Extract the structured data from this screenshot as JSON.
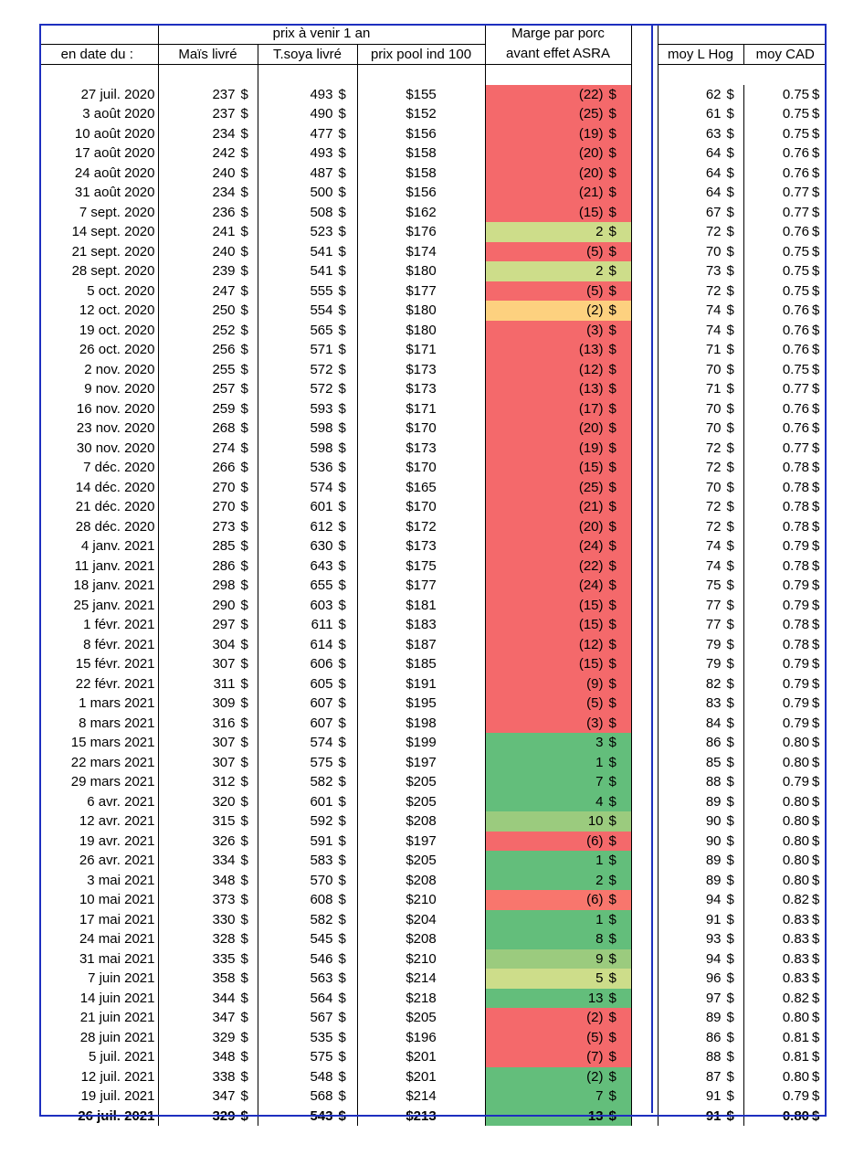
{
  "headers": {
    "date": "en date du :",
    "group_future": "prix à venir 1 an",
    "corn": "Maïs livré",
    "soy": "T.soya livré",
    "pool": "prix pool ind 100",
    "margin_line1": "Marge par porc",
    "margin_line2": "avant effet ASRA",
    "hog": "moy L Hog",
    "cad": "moy CAD"
  },
  "colors": {
    "red": "#f4696b",
    "green": "#63be7b",
    "lightgreen": "#cddd8a",
    "midgreen": "#9bcb7e",
    "yellow": "#fdd17f",
    "salmon": "#f8766d",
    "border_blue": "#1d2fbf"
  },
  "rows": [
    {
      "date": "27 juil. 2020",
      "corn": "237",
      "soy": "493",
      "pool": "$155",
      "margin": "(22)",
      "hog": "62",
      "cad": "0.75",
      "color": "red"
    },
    {
      "date": "3 août 2020",
      "corn": "237",
      "soy": "490",
      "pool": "$152",
      "margin": "(25)",
      "hog": "61",
      "cad": "0.75",
      "color": "red"
    },
    {
      "date": "10 août 2020",
      "corn": "234",
      "soy": "477",
      "pool": "$156",
      "margin": "(19)",
      "hog": "63",
      "cad": "0.75",
      "color": "red"
    },
    {
      "date": "17 août 2020",
      "corn": "242",
      "soy": "493",
      "pool": "$158",
      "margin": "(20)",
      "hog": "64",
      "cad": "0.76",
      "color": "red"
    },
    {
      "date": "24 août 2020",
      "corn": "240",
      "soy": "487",
      "pool": "$158",
      "margin": "(20)",
      "hog": "64",
      "cad": "0.76",
      "color": "red"
    },
    {
      "date": "31 août 2020",
      "corn": "234",
      "soy": "500",
      "pool": "$156",
      "margin": "(21)",
      "hog": "64",
      "cad": "0.77",
      "color": "red"
    },
    {
      "date": "7 sept. 2020",
      "corn": "236",
      "soy": "508",
      "pool": "$162",
      "margin": "(15)",
      "hog": "67",
      "cad": "0.77",
      "color": "red"
    },
    {
      "date": "14 sept. 2020",
      "corn": "241",
      "soy": "523",
      "pool": "$176",
      "margin": "2",
      "hog": "72",
      "cad": "0.76",
      "color": "lightgreen"
    },
    {
      "date": "21 sept. 2020",
      "corn": "240",
      "soy": "541",
      "pool": "$174",
      "margin": "(5)",
      "hog": "70",
      "cad": "0.75",
      "color": "red"
    },
    {
      "date": "28 sept. 2020",
      "corn": "239",
      "soy": "541",
      "pool": "$180",
      "margin": "2",
      "hog": "73",
      "cad": "0.75",
      "color": "lightgreen"
    },
    {
      "date": "5 oct. 2020",
      "corn": "247",
      "soy": "555",
      "pool": "$177",
      "margin": "(5)",
      "hog": "72",
      "cad": "0.75",
      "color": "red"
    },
    {
      "date": "12 oct. 2020",
      "corn": "250",
      "soy": "554",
      "pool": "$180",
      "margin": "(2)",
      "hog": "74",
      "cad": "0.76",
      "color": "yellow"
    },
    {
      "date": "19 oct. 2020",
      "corn": "252",
      "soy": "565",
      "pool": "$180",
      "margin": "(3)",
      "hog": "74",
      "cad": "0.76",
      "color": "red"
    },
    {
      "date": "26 oct. 2020",
      "corn": "256",
      "soy": "571",
      "pool": "$171",
      "margin": "(13)",
      "hog": "71",
      "cad": "0.76",
      "color": "red"
    },
    {
      "date": "2 nov. 2020",
      "corn": "255",
      "soy": "572",
      "pool": "$173",
      "margin": "(12)",
      "hog": "70",
      "cad": "0.75",
      "color": "red"
    },
    {
      "date": "9 nov. 2020",
      "corn": "257",
      "soy": "572",
      "pool": "$173",
      "margin": "(13)",
      "hog": "71",
      "cad": "0.77",
      "color": "red"
    },
    {
      "date": "16 nov. 2020",
      "corn": "259",
      "soy": "593",
      "pool": "$171",
      "margin": "(17)",
      "hog": "70",
      "cad": "0.76",
      "color": "red"
    },
    {
      "date": "23 nov. 2020",
      "corn": "268",
      "soy": "598",
      "pool": "$170",
      "margin": "(20)",
      "hog": "70",
      "cad": "0.76",
      "color": "red"
    },
    {
      "date": "30 nov. 2020",
      "corn": "274",
      "soy": "598",
      "pool": "$173",
      "margin": "(19)",
      "hog": "72",
      "cad": "0.77",
      "color": "red"
    },
    {
      "date": "7 déc. 2020",
      "corn": "266",
      "soy": "536",
      "pool": "$170",
      "margin": "(15)",
      "hog": "72",
      "cad": "0.78",
      "color": "red"
    },
    {
      "date": "14 déc. 2020",
      "corn": "270",
      "soy": "574",
      "pool": "$165",
      "margin": "(25)",
      "hog": "70",
      "cad": "0.78",
      "color": "red"
    },
    {
      "date": "21 déc. 2020",
      "corn": "270",
      "soy": "601",
      "pool": "$170",
      "margin": "(21)",
      "hog": "72",
      "cad": "0.78",
      "color": "red"
    },
    {
      "date": "28 déc. 2020",
      "corn": "273",
      "soy": "612",
      "pool": "$172",
      "margin": "(20)",
      "hog": "72",
      "cad": "0.78",
      "color": "red"
    },
    {
      "date": "4 janv. 2021",
      "corn": "285",
      "soy": "630",
      "pool": "$173",
      "margin": "(24)",
      "hog": "74",
      "cad": "0.79",
      "color": "red"
    },
    {
      "date": "11 janv. 2021",
      "corn": "286",
      "soy": "643",
      "pool": "$175",
      "margin": "(22)",
      "hog": "74",
      "cad": "0.78",
      "color": "red"
    },
    {
      "date": "18 janv. 2021",
      "corn": "298",
      "soy": "655",
      "pool": "$177",
      "margin": "(24)",
      "hog": "75",
      "cad": "0.79",
      "color": "red"
    },
    {
      "date": "25 janv. 2021",
      "corn": "290",
      "soy": "603",
      "pool": "$181",
      "margin": "(15)",
      "hog": "77",
      "cad": "0.79",
      "color": "red"
    },
    {
      "date": "1 févr. 2021",
      "corn": "297",
      "soy": "611",
      "pool": "$183",
      "margin": "(15)",
      "hog": "77",
      "cad": "0.78",
      "color": "red"
    },
    {
      "date": "8 févr. 2021",
      "corn": "304",
      "soy": "614",
      "pool": "$187",
      "margin": "(12)",
      "hog": "79",
      "cad": "0.78",
      "color": "red"
    },
    {
      "date": "15 févr. 2021",
      "corn": "307",
      "soy": "606",
      "pool": "$185",
      "margin": "(15)",
      "hog": "79",
      "cad": "0.79",
      "color": "red"
    },
    {
      "date": "22 févr. 2021",
      "corn": "311",
      "soy": "605",
      "pool": "$191",
      "margin": "(9)",
      "hog": "82",
      "cad": "0.79",
      "color": "red"
    },
    {
      "date": "1 mars 2021",
      "corn": "309",
      "soy": "607",
      "pool": "$195",
      "margin": "(5)",
      "hog": "83",
      "cad": "0.79",
      "color": "red"
    },
    {
      "date": "8 mars 2021",
      "corn": "316",
      "soy": "607",
      "pool": "$198",
      "margin": "(3)",
      "hog": "84",
      "cad": "0.79",
      "color": "red"
    },
    {
      "date": "15 mars 2021",
      "corn": "307",
      "soy": "574",
      "pool": "$199",
      "margin": "3",
      "hog": "86",
      "cad": "0.80",
      "color": "green"
    },
    {
      "date": "22 mars 2021",
      "corn": "307",
      "soy": "575",
      "pool": "$197",
      "margin": "1",
      "hog": "85",
      "cad": "0.80",
      "color": "green"
    },
    {
      "date": "29 mars 2021",
      "corn": "312",
      "soy": "582",
      "pool": "$205",
      "margin": "7",
      "hog": "88",
      "cad": "0.79",
      "color": "green"
    },
    {
      "date": "6 avr. 2021",
      "corn": "320",
      "soy": "601",
      "pool": "$205",
      "margin": "4",
      "hog": "89",
      "cad": "0.80",
      "color": "green"
    },
    {
      "date": "12 avr. 2021",
      "corn": "315",
      "soy": "592",
      "pool": "$208",
      "margin": "10",
      "hog": "90",
      "cad": "0.80",
      "color": "midgreen"
    },
    {
      "date": "19 avr. 2021",
      "corn": "326",
      "soy": "591",
      "pool": "$197",
      "margin": "(6)",
      "hog": "90",
      "cad": "0.80",
      "color": "red"
    },
    {
      "date": "26 avr. 2021",
      "corn": "334",
      "soy": "583",
      "pool": "$205",
      "margin": "1",
      "hog": "89",
      "cad": "0.80",
      "color": "green"
    },
    {
      "date": "3 mai 2021",
      "corn": "348",
      "soy": "570",
      "pool": "$208",
      "margin": "2",
      "hog": "89",
      "cad": "0.80",
      "color": "green"
    },
    {
      "date": "10 mai 2021",
      "corn": "373",
      "soy": "608",
      "pool": "$210",
      "margin": "(6)",
      "hog": "94",
      "cad": "0.82",
      "color": "salmon"
    },
    {
      "date": "17 mai 2021",
      "corn": "330",
      "soy": "582",
      "pool": "$204",
      "margin": "1",
      "hog": "91",
      "cad": "0.83",
      "color": "green"
    },
    {
      "date": "24 mai 2021",
      "corn": "328",
      "soy": "545",
      "pool": "$208",
      "margin": "8",
      "hog": "93",
      "cad": "0.83",
      "color": "green"
    },
    {
      "date": "31 mai 2021",
      "corn": "335",
      "soy": "546",
      "pool": "$210",
      "margin": "9",
      "hog": "94",
      "cad": "0.83",
      "color": "midgreen"
    },
    {
      "date": "7 juin 2021",
      "corn": "358",
      "soy": "563",
      "pool": "$214",
      "margin": "5",
      "hog": "96",
      "cad": "0.83",
      "color": "lightgreen"
    },
    {
      "date": "14 juin 2021",
      "corn": "344",
      "soy": "564",
      "pool": "$218",
      "margin": "13",
      "hog": "97",
      "cad": "0.82",
      "color": "green"
    },
    {
      "date": "21 juin 2021",
      "corn": "347",
      "soy": "567",
      "pool": "$205",
      "margin": "(2)",
      "hog": "89",
      "cad": "0.80",
      "color": "red"
    },
    {
      "date": "28 juin 2021",
      "corn": "329",
      "soy": "535",
      "pool": "$196",
      "margin": "(5)",
      "hog": "86",
      "cad": "0.81",
      "color": "red"
    },
    {
      "date": "5 juil. 2021",
      "corn": "348",
      "soy": "575",
      "pool": "$201",
      "margin": "(7)",
      "hog": "88",
      "cad": "0.81",
      "color": "red"
    },
    {
      "date": "12 juil. 2021",
      "corn": "338",
      "soy": "548",
      "pool": "$201",
      "margin": "(2)",
      "hog": "87",
      "cad": "0.80",
      "color": "green"
    },
    {
      "date": "19 juil. 2021",
      "corn": "347",
      "soy": "568",
      "pool": "$214",
      "margin": "7",
      "hog": "91",
      "cad": "0.79",
      "color": "green"
    },
    {
      "date": "26 juil. 2021",
      "corn": "329",
      "soy": "543",
      "pool": "$213",
      "margin": "13",
      "hog": "91",
      "cad": "0.80",
      "color": "green"
    }
  ],
  "currency_symbol": "$"
}
